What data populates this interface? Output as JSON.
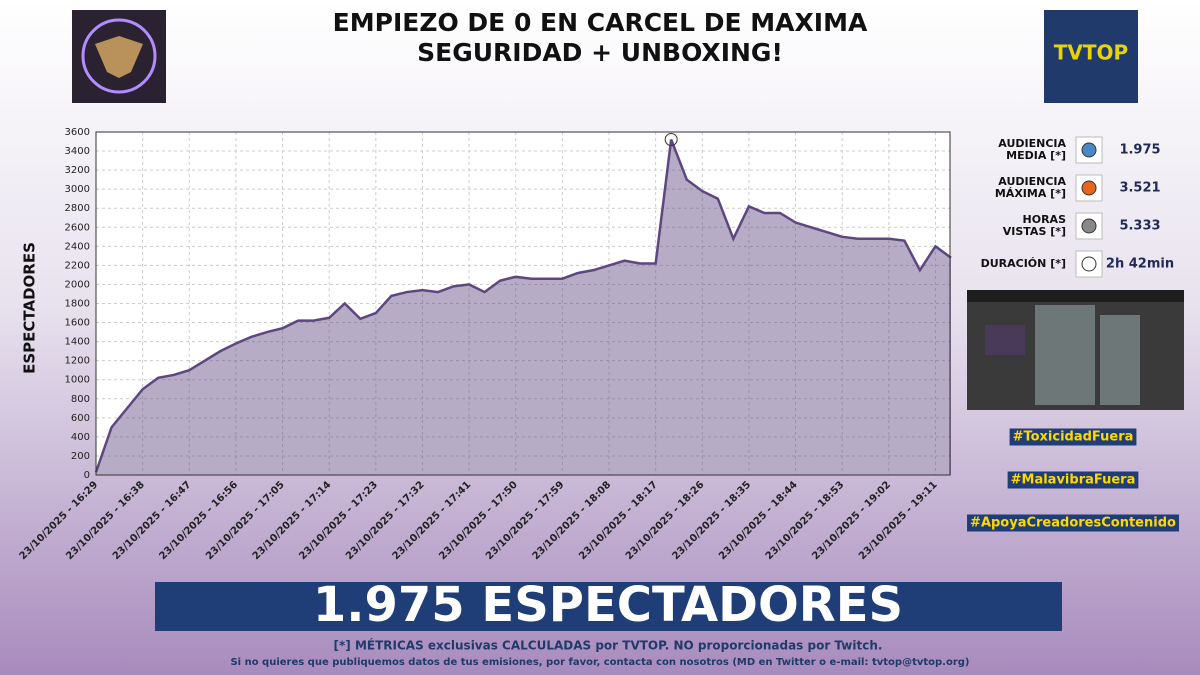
{
  "header": {
    "title_lines": [
      "EMPIEZO DE 0 EN CARCEL DE MAXIMA",
      "SEGURIDAD + UNBOXING!"
    ],
    "logo": "TVTOP"
  },
  "chart_data": {
    "type": "area",
    "y_label": "ESPECTADORES",
    "categories": [
      "23/10/2025 - 16:29",
      null,
      null,
      "23/10/2025 - 16:38",
      null,
      null,
      "23/10/2025 - 16:47",
      null,
      null,
      "23/10/2025 - 16:56",
      null,
      null,
      "23/10/2025 - 17:05",
      null,
      null,
      "23/10/2025 - 17:14",
      null,
      null,
      "23/10/2025 - 17:23",
      null,
      null,
      "23/10/2025 - 17:32",
      null,
      null,
      "23/10/2025 - 17:41",
      null,
      null,
      "23/10/2025 - 17:50",
      null,
      null,
      "23/10/2025 - 17:59",
      null,
      null,
      "23/10/2025 - 18:08",
      null,
      null,
      "23/10/2025 - 18:17",
      null,
      null,
      "23/10/2025 - 18:26",
      null,
      null,
      "23/10/2025 - 18:35",
      null,
      null,
      "23/10/2025 - 18:44",
      null,
      null,
      "23/10/2025 - 18:53",
      null,
      null,
      "23/10/2025 - 19:02",
      null,
      null,
      "23/10/2025 - 19:11",
      null
    ],
    "values": [
      30,
      500,
      700,
      900,
      1020,
      1050,
      1100,
      1200,
      1300,
      1380,
      1450,
      1500,
      1540,
      1620,
      1620,
      1650,
      1800,
      1640,
      1700,
      1880,
      1920,
      1940,
      1920,
      1980,
      2000,
      1920,
      2040,
      2080,
      2060,
      2060,
      2060,
      2120,
      2150,
      2200,
      2250,
      2220,
      2220,
      3521,
      3100,
      2980,
      2900,
      2480,
      2820,
      2750,
      2750,
      2650,
      2600,
      2550,
      2500,
      2480,
      2480,
      2480,
      2460,
      2150,
      2400,
      2280
    ],
    "color": "#5e4680",
    "ylim": [
      0,
      3600
    ],
    "yticks": [
      0,
      200,
      400,
      600,
      800,
      1000,
      1200,
      1400,
      1600,
      1800,
      2000,
      2200,
      2400,
      2600,
      2800,
      3000,
      3200,
      3400,
      3600
    ],
    "grid": true
  },
  "stats": [
    {
      "label": [
        "AUDIENCIA",
        "MEDIA [*]"
      ],
      "value": "1.975"
    },
    {
      "label": [
        "AUDIENCIA",
        "MÁXIMA [*]"
      ],
      "value": "3.521"
    },
    {
      "label": [
        "HORAS",
        "VISTAS [*]"
      ],
      "value": "5.333"
    },
    {
      "label": [
        "DURACIÓN [*]"
      ],
      "value": "2h 42min"
    }
  ],
  "hashtags": [
    "#ToxicidadFuera",
    "#MalavibraFuera",
    "#ApoyaCreadoresContenido"
  ],
  "banner": "1.975 ESPECTADORES",
  "footer": {
    "note": "[*] MÉTRICAS exclusivas CALCULADAS por TVTOP. NO proporcionadas por Twitch.",
    "contact": "Si no quieres que publiquemos datos de tus emisiones, por favor, contacta con nosotros (MD en Twitter o e-mail: tvtop@tvtop.org)"
  }
}
